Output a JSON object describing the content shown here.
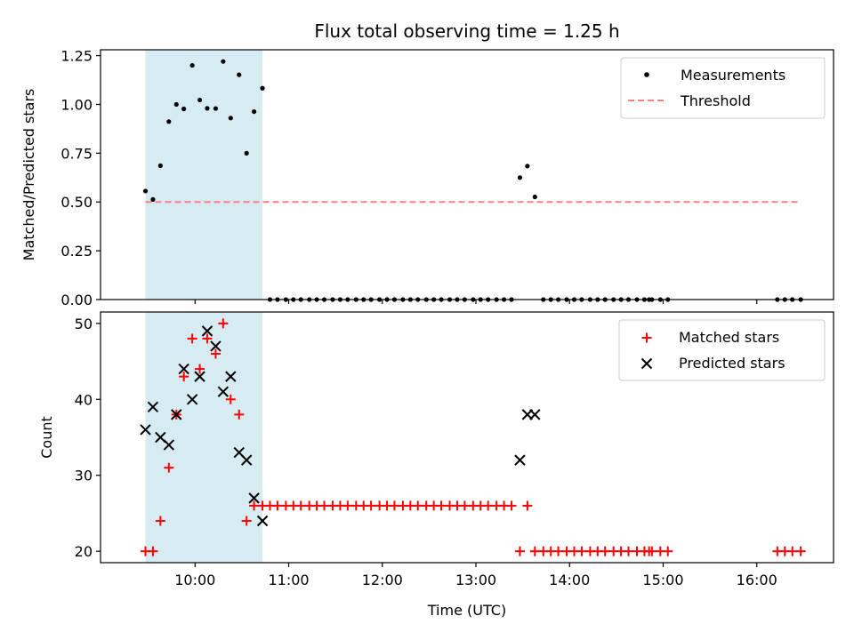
{
  "chart_data": {
    "title": "Flux total observing time = 1.25 h",
    "xlabel": "Time (UTC)",
    "x_unit": "hours UTC",
    "xlim": [
      8.99,
      16.82
    ],
    "xticks": [
      {
        "value": 10,
        "label": "10:00"
      },
      {
        "value": 11,
        "label": "11:00"
      },
      {
        "value": 12,
        "label": "12:00"
      },
      {
        "value": 13,
        "label": "13:00"
      },
      {
        "value": 14,
        "label": "14:00"
      },
      {
        "value": 15,
        "label": "15:00"
      },
      {
        "value": 16,
        "label": "16:00"
      }
    ],
    "shaded_interval": {
      "x_start": 9.47,
      "x_end": 10.72,
      "color": "#add8e6"
    },
    "panels": [
      {
        "type": "scatter",
        "ylabel": "Matched/Predicted stars",
        "ylim": [
          0,
          1.28
        ],
        "yticks": [
          {
            "value": 0,
            "label": "0.00"
          },
          {
            "value": 0.25,
            "label": "0.25"
          },
          {
            "value": 0.5,
            "label": "0.50"
          },
          {
            "value": 0.75,
            "label": "0.75"
          },
          {
            "value": 1.0,
            "label": "1.00"
          },
          {
            "value": 1.25,
            "label": "1.25"
          }
        ],
        "legend": {
          "position": "upper-right",
          "entries": [
            {
              "label": "Measurements",
              "marker": "dot",
              "color": "#000000"
            },
            {
              "label": "Threshold",
              "marker": "dashed-line",
              "color": "#ff7f7f"
            }
          ]
        },
        "threshold": {
          "y": 0.5,
          "x_start": 9.47,
          "x_end": 16.47,
          "color": "#ff7f7f"
        },
        "series": [
          {
            "name": "Measurements",
            "color": "#000000",
            "points": [
              [
                9.47,
                0.556
              ],
              [
                9.55,
                0.513
              ],
              [
                9.63,
                0.686
              ],
              [
                9.72,
                0.912
              ],
              [
                9.8,
                1.0
              ],
              [
                9.88,
                0.977
              ],
              [
                9.97,
                1.2
              ],
              [
                10.05,
                1.023
              ],
              [
                10.13,
                0.98
              ],
              [
                10.22,
                0.979
              ],
              [
                10.3,
                1.22
              ],
              [
                10.38,
                0.93
              ],
              [
                10.47,
                1.152
              ],
              [
                10.55,
                0.75
              ],
              [
                10.63,
                0.963
              ],
              [
                10.72,
                1.083
              ],
              [
                10.8,
                0
              ],
              [
                10.88,
                0
              ],
              [
                10.97,
                0
              ],
              [
                11.05,
                0
              ],
              [
                11.13,
                0
              ],
              [
                11.22,
                0
              ],
              [
                11.3,
                0
              ],
              [
                11.38,
                0
              ],
              [
                11.47,
                0
              ],
              [
                11.55,
                0
              ],
              [
                11.63,
                0
              ],
              [
                11.72,
                0
              ],
              [
                11.8,
                0
              ],
              [
                11.88,
                0
              ],
              [
                11.97,
                0
              ],
              [
                12.05,
                0
              ],
              [
                12.13,
                0
              ],
              [
                12.22,
                0
              ],
              [
                12.3,
                0
              ],
              [
                12.38,
                0
              ],
              [
                12.47,
                0
              ],
              [
                12.55,
                0
              ],
              [
                12.63,
                0
              ],
              [
                12.72,
                0
              ],
              [
                12.8,
                0
              ],
              [
                12.88,
                0
              ],
              [
                12.97,
                0
              ],
              [
                13.05,
                0
              ],
              [
                13.13,
                0
              ],
              [
                13.22,
                0
              ],
              [
                13.3,
                0
              ],
              [
                13.38,
                0
              ],
              [
                13.47,
                0.625
              ],
              [
                13.55,
                0.684
              ],
              [
                13.63,
                0.526
              ],
              [
                13.72,
                0
              ],
              [
                13.8,
                0
              ],
              [
                13.88,
                0
              ],
              [
                13.97,
                0
              ],
              [
                14.05,
                0
              ],
              [
                14.13,
                0
              ],
              [
                14.22,
                0
              ],
              [
                14.3,
                0
              ],
              [
                14.38,
                0
              ],
              [
                14.47,
                0
              ],
              [
                14.55,
                0
              ],
              [
                14.63,
                0
              ],
              [
                14.72,
                0
              ],
              [
                14.8,
                0
              ],
              [
                14.85,
                0
              ],
              [
                14.88,
                0
              ],
              [
                14.97,
                0
              ],
              [
                15.05,
                0
              ],
              [
                16.22,
                0
              ],
              [
                16.3,
                0
              ],
              [
                16.38,
                0
              ],
              [
                16.47,
                0
              ]
            ]
          }
        ]
      },
      {
        "type": "scatter",
        "ylabel": "Count",
        "ylim": [
          18.5,
          51.5
        ],
        "yticks": [
          {
            "value": 20,
            "label": "20"
          },
          {
            "value": 30,
            "label": "30"
          },
          {
            "value": 40,
            "label": "40"
          },
          {
            "value": 50,
            "label": "50"
          }
        ],
        "legend": {
          "position": "upper-right",
          "entries": [
            {
              "label": "Matched stars",
              "marker": "plus",
              "color": "#ff0000"
            },
            {
              "label": "Predicted stars",
              "marker": "x",
              "color": "#000000"
            }
          ]
        },
        "series": [
          {
            "name": "Matched stars",
            "marker": "plus",
            "color": "#ff0000",
            "points": [
              [
                9.47,
                20
              ],
              [
                9.55,
                20
              ],
              [
                9.63,
                24
              ],
              [
                9.72,
                31
              ],
              [
                9.8,
                38
              ],
              [
                9.88,
                43
              ],
              [
                9.97,
                48
              ],
              [
                10.05,
                44
              ],
              [
                10.13,
                48
              ],
              [
                10.22,
                46
              ],
              [
                10.3,
                50
              ],
              [
                10.38,
                40
              ],
              [
                10.47,
                38
              ],
              [
                10.55,
                24
              ],
              [
                10.63,
                26
              ],
              [
                10.72,
                26
              ],
              [
                10.8,
                26
              ],
              [
                10.88,
                26
              ],
              [
                10.97,
                26
              ],
              [
                11.05,
                26
              ],
              [
                11.13,
                26
              ],
              [
                11.22,
                26
              ],
              [
                11.3,
                26
              ],
              [
                11.38,
                26
              ],
              [
                11.47,
                26
              ],
              [
                11.55,
                26
              ],
              [
                11.63,
                26
              ],
              [
                11.72,
                26
              ],
              [
                11.8,
                26
              ],
              [
                11.88,
                26
              ],
              [
                11.97,
                26
              ],
              [
                12.05,
                26
              ],
              [
                12.13,
                26
              ],
              [
                12.22,
                26
              ],
              [
                12.3,
                26
              ],
              [
                12.38,
                26
              ],
              [
                12.47,
                26
              ],
              [
                12.55,
                26
              ],
              [
                12.63,
                26
              ],
              [
                12.72,
                26
              ],
              [
                12.8,
                26
              ],
              [
                12.88,
                26
              ],
              [
                12.97,
                26
              ],
              [
                13.05,
                26
              ],
              [
                13.13,
                26
              ],
              [
                13.22,
                26
              ],
              [
                13.3,
                26
              ],
              [
                13.38,
                26
              ],
              [
                13.47,
                20
              ],
              [
                13.55,
                26
              ],
              [
                13.63,
                20
              ],
              [
                13.72,
                20
              ],
              [
                13.8,
                20
              ],
              [
                13.88,
                20
              ],
              [
                13.97,
                20
              ],
              [
                14.05,
                20
              ],
              [
                14.13,
                20
              ],
              [
                14.22,
                20
              ],
              [
                14.3,
                20
              ],
              [
                14.38,
                20
              ],
              [
                14.47,
                20
              ],
              [
                14.55,
                20
              ],
              [
                14.63,
                20
              ],
              [
                14.72,
                20
              ],
              [
                14.8,
                20
              ],
              [
                14.85,
                20
              ],
              [
                14.88,
                20
              ],
              [
                14.97,
                20
              ],
              [
                15.05,
                20
              ],
              [
                16.22,
                20
              ],
              [
                16.3,
                20
              ],
              [
                16.38,
                20
              ],
              [
                16.47,
                20
              ]
            ]
          },
          {
            "name": "Predicted stars",
            "marker": "x",
            "color": "#000000",
            "points": [
              [
                9.47,
                36
              ],
              [
                9.55,
                39
              ],
              [
                9.63,
                35
              ],
              [
                9.72,
                34
              ],
              [
                9.8,
                38
              ],
              [
                9.88,
                44
              ],
              [
                9.97,
                40
              ],
              [
                10.05,
                43
              ],
              [
                10.13,
                49
              ],
              [
                10.22,
                47
              ],
              [
                10.3,
                41
              ],
              [
                10.38,
                43
              ],
              [
                10.47,
                33
              ],
              [
                10.55,
                32
              ],
              [
                10.63,
                27
              ],
              [
                10.72,
                24
              ],
              [
                13.47,
                32
              ],
              [
                13.55,
                38
              ],
              [
                13.63,
                38
              ]
            ]
          }
        ]
      }
    ]
  }
}
